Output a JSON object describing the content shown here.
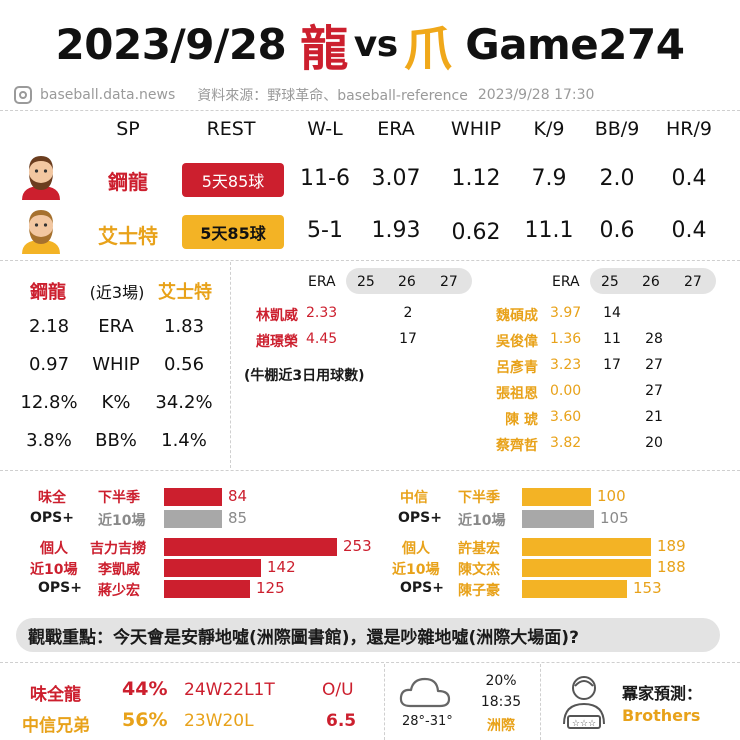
{
  "header": {
    "date": "2023/9/28",
    "team1_char": "龍",
    "vs": "vs",
    "team2_char": "爪",
    "game": "Game274",
    "site": "baseball.data.news",
    "source": "資料來源：野球革命、baseball-reference",
    "datetime": "2023/9/28  17:30"
  },
  "sp_table": {
    "headers": [
      "SP",
      "REST",
      "W-L",
      "ERA",
      "WHIP",
      "K/9",
      "BB/9",
      "HR/9"
    ],
    "rows": [
      {
        "name": "鋼龍",
        "rest": "5天85球",
        "wl": "11-6",
        "era": "3.07",
        "whip": "1.12",
        "k9": "7.9",
        "bb9": "2.0",
        "hr9": "0.4"
      },
      {
        "name": "艾士特",
        "rest": "5天85球",
        "wl": "5-1",
        "era": "1.93",
        "whip": "0.62",
        "k9": "11.1",
        "bb9": "0.6",
        "hr9": "0.4"
      }
    ]
  },
  "recent": {
    "left_name": "鋼龍",
    "mid_label": "(近3場)",
    "right_name": "艾士特",
    "rows": [
      {
        "l": "2.18",
        "m": "ERA",
        "r": "1.83"
      },
      {
        "l": "0.97",
        "m": "WHIP",
        "r": "0.56"
      },
      {
        "l": "12.8%",
        "m": "K%",
        "r": "34.2%"
      },
      {
        "l": "3.8%",
        "m": "BB%",
        "r": "1.4%"
      }
    ]
  },
  "bullpen": {
    "era_label": "ERA",
    "days": [
      "25",
      "26",
      "27"
    ],
    "note": "(牛棚近3日用球數)",
    "left": [
      {
        "name": "林凱威",
        "era": "2.33",
        "d25": "",
        "d26": "2",
        "d27": ""
      },
      {
        "name": "趙璟榮",
        "era": "4.45",
        "d25": "",
        "d26": "17",
        "d27": ""
      }
    ],
    "right": [
      {
        "name": "魏碩成",
        "era": "3.97",
        "d25": "14",
        "d26": "",
        "d27": ""
      },
      {
        "name": "吳俊偉",
        "era": "1.36",
        "d25": "11",
        "d26": "28",
        "d27": ""
      },
      {
        "name": "呂彥青",
        "era": "3.23",
        "d25": "17",
        "d26": "27",
        "d27": ""
      },
      {
        "name": "張祖恩",
        "era": "0.00",
        "d25": "",
        "d26": "27",
        "d27": ""
      },
      {
        "name": "陳 琥",
        "era": "3.60",
        "d25": "",
        "d26": "21",
        "d27": ""
      },
      {
        "name": "蔡齊哲",
        "era": "3.82",
        "d25": "",
        "d26": "20",
        "d27": ""
      }
    ]
  },
  "offense": {
    "left": {
      "team_label": "味全",
      "ops_label": "OPS+",
      "half": "下半季",
      "half_val": 84,
      "last10": "近10場",
      "last10_val": 85,
      "player_label1": "個人",
      "player_label2": "近10場",
      "player_label3": "OPS+",
      "players": [
        {
          "name": "吉力吉撈",
          "val": 253
        },
        {
          "name": "李凱威",
          "val": 142
        },
        {
          "name": "蔣少宏",
          "val": 125
        }
      ]
    },
    "right": {
      "team_label": "中信",
      "ops_label": "OPS+",
      "half": "下半季",
      "half_val": 100,
      "last10": "近10場",
      "last10_val": 105,
      "player_label1": "個人",
      "player_label2": "近10場",
      "player_label3": "OPS+",
      "players": [
        {
          "name": "許基宏",
          "val": 189
        },
        {
          "name": "陳文杰",
          "val": 188
        },
        {
          "name": "陳子豪",
          "val": 153
        }
      ]
    }
  },
  "focus": "觀戰重點：今天會是安靜地噓(洲際圖書館)，還是吵雜地噓(洲際大場面)?",
  "footer": {
    "t1": "味全龍",
    "t1_pct": "44%",
    "t1_rec": "24W22L1T",
    "t2": "中信兄弟",
    "t2_pct": "56%",
    "t2_rec": "23W20L",
    "ou_label": "O/U",
    "ou_val": "6.5",
    "rain": "20%",
    "time": "18:35",
    "venue": "洲際",
    "temp": "28°-31°",
    "pred_label": "冪家預測：",
    "pred": "Brothers"
  },
  "colors": {
    "dragons": "#cc1f2e",
    "brothers": "#f3b325",
    "grey": "#a8a8a8"
  }
}
